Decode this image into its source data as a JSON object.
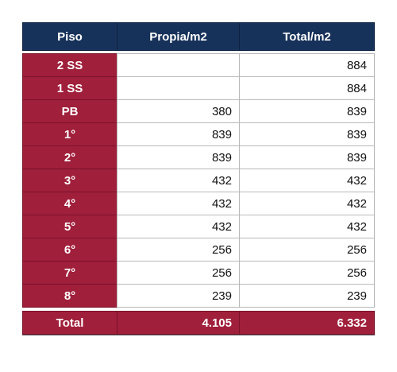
{
  "table": {
    "headers": {
      "floor": "Piso",
      "own": "Propia/m2",
      "total": "Total/m2"
    },
    "rows": [
      {
        "floor": "2 SS",
        "own": "",
        "total": "884"
      },
      {
        "floor": "1 SS",
        "own": "",
        "total": "884"
      },
      {
        "floor": "PB",
        "own": "380",
        "total": "839"
      },
      {
        "floor": "1°",
        "own": "839",
        "total": "839"
      },
      {
        "floor": "2°",
        "own": "839",
        "total": "839"
      },
      {
        "floor": "3°",
        "own": "432",
        "total": "432"
      },
      {
        "floor": "4°",
        "own": "432",
        "total": "432"
      },
      {
        "floor": "5°",
        "own": "432",
        "total": "432"
      },
      {
        "floor": "6°",
        "own": "256",
        "total": "256"
      },
      {
        "floor": "7°",
        "own": "256",
        "total": "256"
      },
      {
        "floor": "8°",
        "own": "239",
        "total": "239"
      }
    ],
    "total": {
      "label": "Total",
      "own": "4.105",
      "total": "6.332"
    }
  },
  "colors": {
    "header_bg": "#17325a",
    "label_bg": "#a01f3b",
    "text_light": "#ffffff"
  }
}
